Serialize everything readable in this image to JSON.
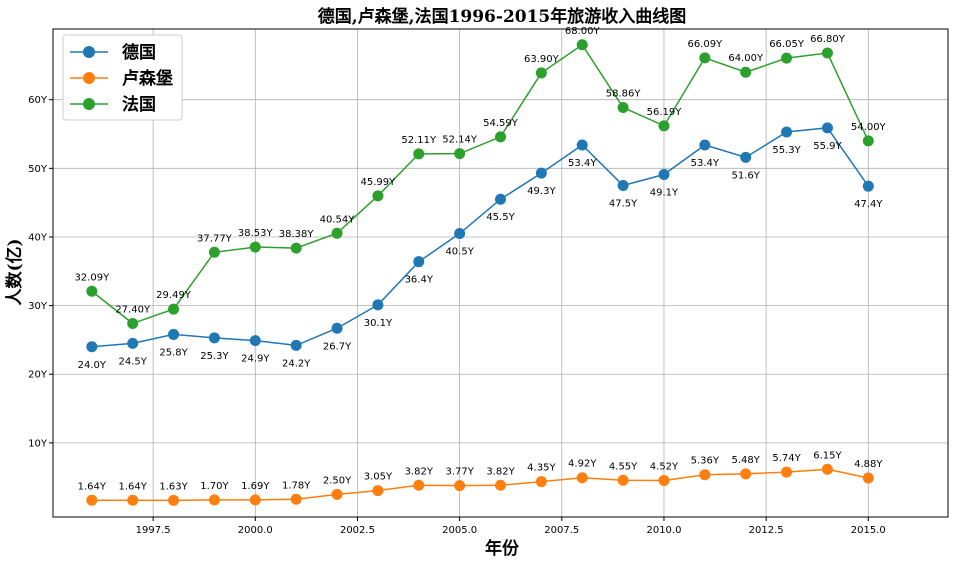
{
  "chart_data": {
    "type": "line",
    "title": "德国,卢森堡,法国1996-2015年旅游收入曲线图",
    "xlabel": "年份",
    "ylabel": "人数(亿)",
    "x": [
      1996,
      1997,
      1998,
      1999,
      2000,
      2001,
      2002,
      2003,
      2004,
      2005,
      2006,
      2007,
      2008,
      2009,
      2010,
      2011,
      2012,
      2013,
      2014,
      2015
    ],
    "xlim": [
      1995.05,
      2016.95
    ],
    "ylim": [
      -0.8,
      70.3
    ],
    "x_ticks": [
      1997.5,
      2000.0,
      2002.5,
      2005.0,
      2007.5,
      2010.0,
      2012.5,
      2015.0
    ],
    "x_tick_labels": [
      "1997.5",
      "2000.0",
      "2002.5",
      "2005.0",
      "2007.5",
      "2010.0",
      "2012.5",
      "2015.0"
    ],
    "y_ticks": [
      10,
      20,
      30,
      40,
      50,
      60
    ],
    "y_tick_labels": [
      "10Y",
      "20Y",
      "30Y",
      "40Y",
      "50Y",
      "60Y"
    ],
    "grid": true,
    "legend_position": "top-left",
    "series": [
      {
        "name": "德国",
        "color": "#1f77b4",
        "label_position": "below",
        "values": [
          24.0,
          24.5,
          25.8,
          25.3,
          24.9,
          24.2,
          26.7,
          30.1,
          36.4,
          40.5,
          45.5,
          49.3,
          53.4,
          47.5,
          49.1,
          53.4,
          51.6,
          55.3,
          55.9,
          47.4
        ],
        "labels": [
          "24.0Y",
          "24.5Y",
          "25.8Y",
          "25.3Y",
          "24.9Y",
          "24.2Y",
          "26.7Y",
          "30.1Y",
          "36.4Y",
          "40.5Y",
          "45.5Y",
          "49.3Y",
          "53.4Y",
          "47.5Y",
          "49.1Y",
          "53.4Y",
          "51.6Y",
          "55.3Y",
          "55.9Y",
          "47.4Y"
        ]
      },
      {
        "name": "卢森堡",
        "color": "#ff7f0e",
        "label_position": "above",
        "values": [
          1.64,
          1.64,
          1.63,
          1.7,
          1.69,
          1.78,
          2.5,
          3.05,
          3.82,
          3.77,
          3.82,
          4.35,
          4.92,
          4.55,
          4.52,
          5.36,
          5.48,
          5.74,
          6.15,
          4.88
        ],
        "labels": [
          "1.64Y",
          "1.64Y",
          "1.63Y",
          "1.70Y",
          "1.69Y",
          "1.78Y",
          "2.50Y",
          "3.05Y",
          "3.82Y",
          "3.77Y",
          "3.82Y",
          "4.35Y",
          "4.92Y",
          "4.55Y",
          "4.52Y",
          "5.36Y",
          "5.48Y",
          "5.74Y",
          "6.15Y",
          "4.88Y"
        ]
      },
      {
        "name": "法国",
        "color": "#2ca02c",
        "label_position": "above",
        "values": [
          32.09,
          27.4,
          29.49,
          37.77,
          38.53,
          38.38,
          40.54,
          45.99,
          52.11,
          52.14,
          54.59,
          63.9,
          68.0,
          58.86,
          56.19,
          66.09,
          64.0,
          66.05,
          66.8,
          54.0
        ],
        "labels": [
          "32.09Y",
          "27.40Y",
          "29.49Y",
          "37.77Y",
          "38.53Y",
          "38.38Y",
          "40.54Y",
          "45.99Y",
          "52.11Y",
          "52.14Y",
          "54.59Y",
          "63.90Y",
          "68.00Y",
          "58.86Y",
          "56.19Y",
          "66.09Y",
          "64.00Y",
          "66.05Y",
          "66.80Y",
          "54.00Y"
        ]
      }
    ]
  }
}
